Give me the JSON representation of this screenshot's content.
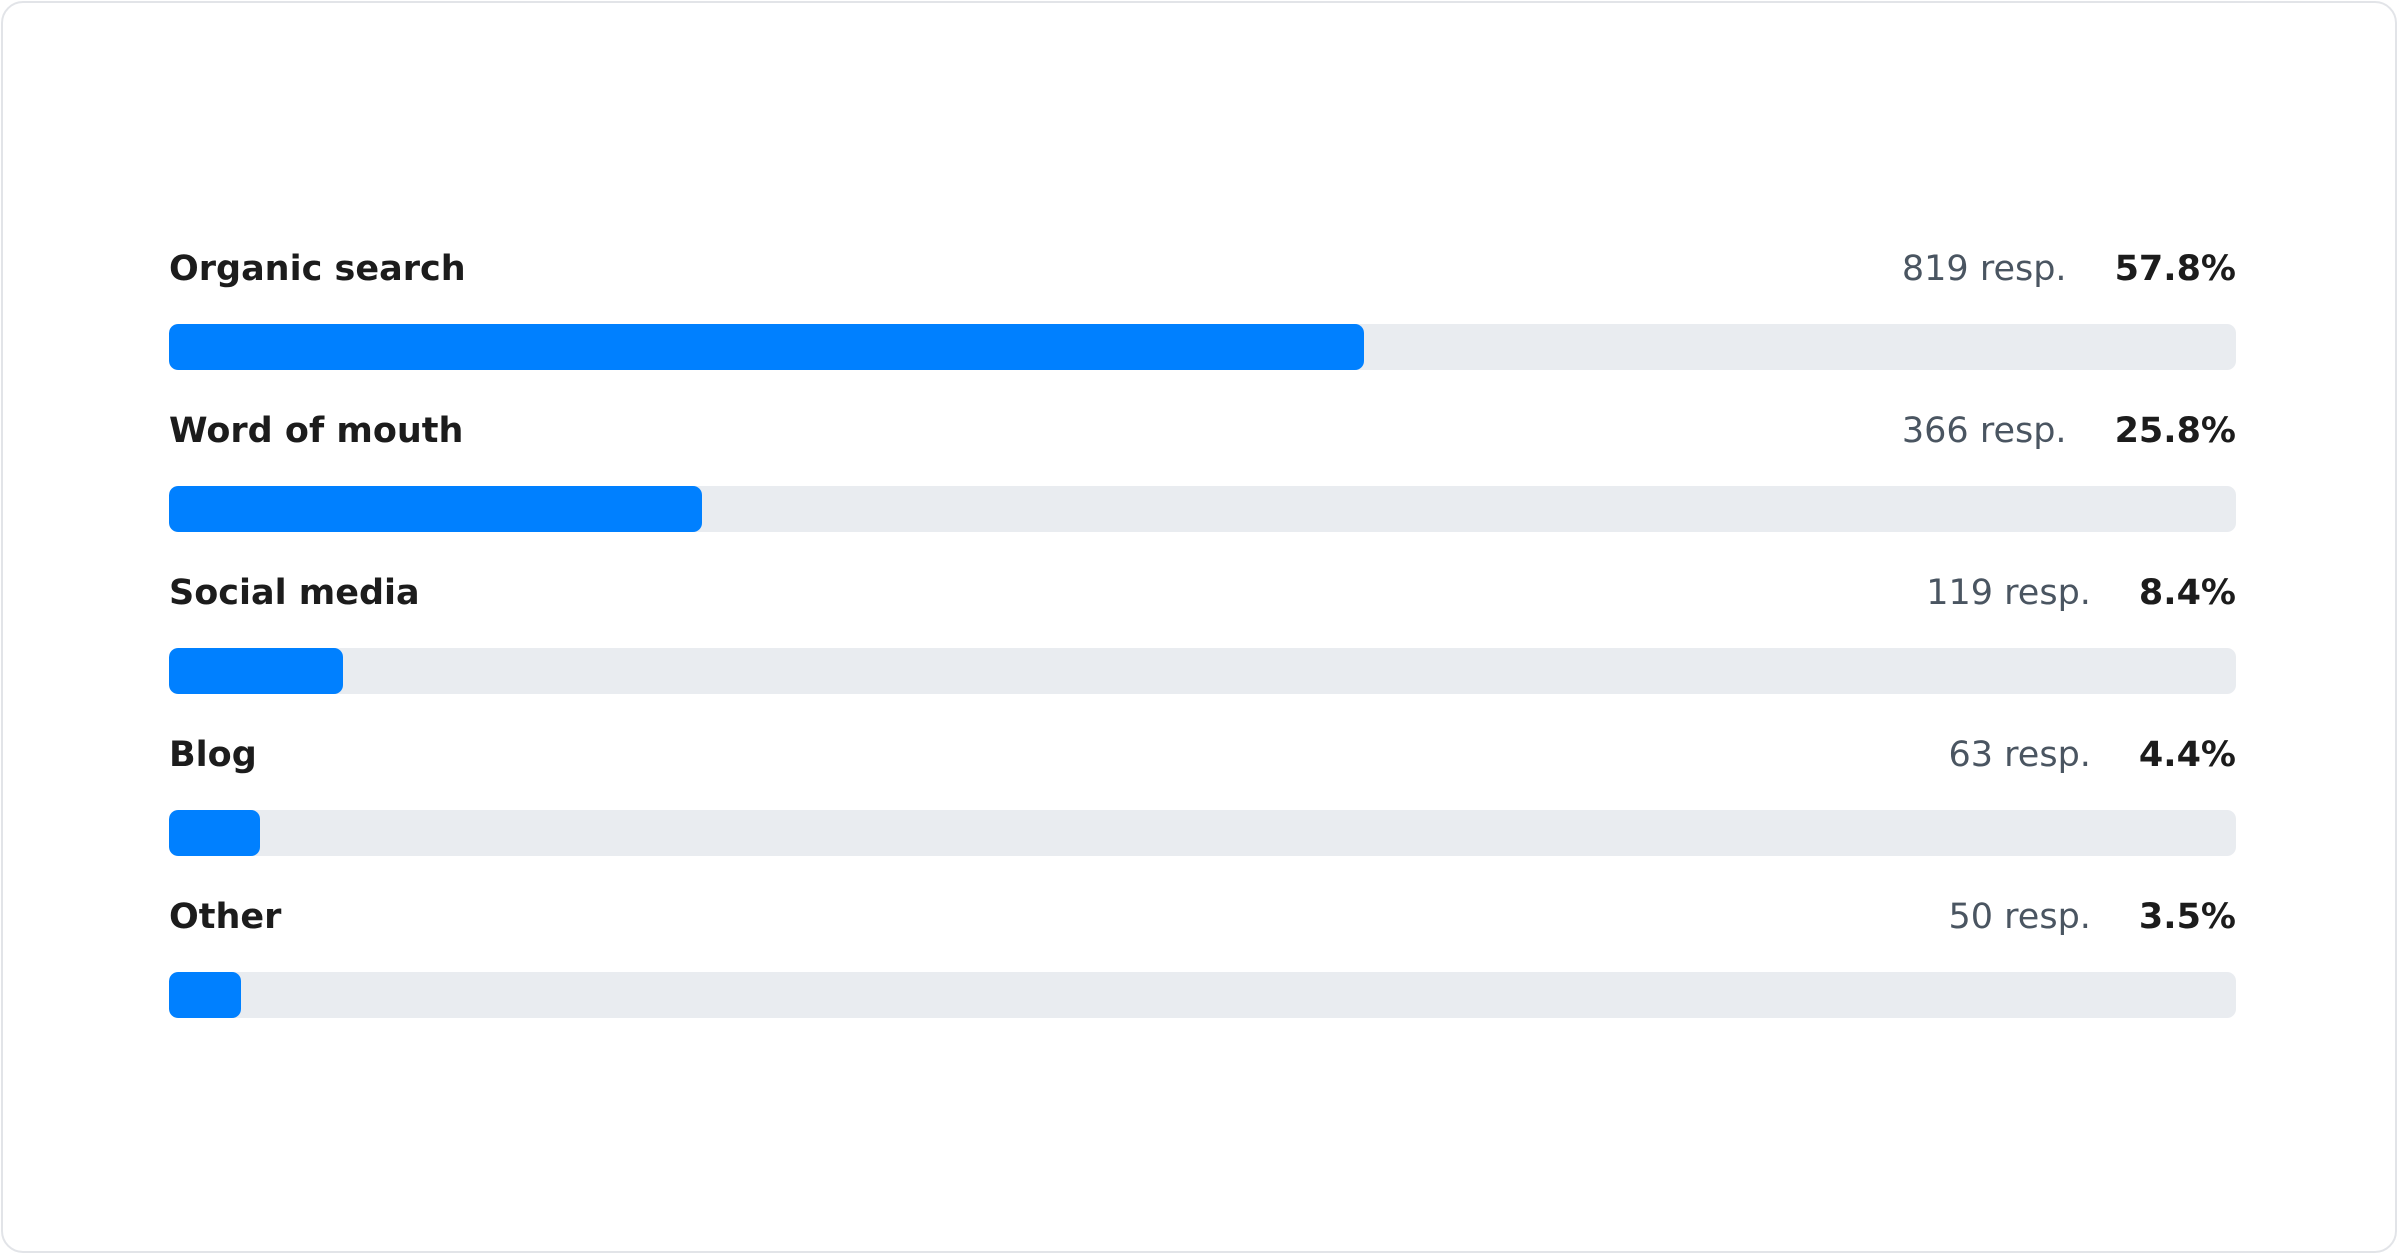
{
  "chart_data": {
    "type": "bar",
    "orientation": "horizontal",
    "categories": [
      "Organic search",
      "Word of mouth",
      "Social media",
      "Blog",
      "Other"
    ],
    "responses": [
      819,
      366,
      119,
      63,
      50
    ],
    "values": [
      57.8,
      25.8,
      8.4,
      4.4,
      3.5
    ],
    "response_labels": [
      "819 resp.",
      "366 resp.",
      "119 resp.",
      "63 resp.",
      "50 resp."
    ],
    "value_labels": [
      "57.8%",
      "25.8%",
      "8.4%",
      "4.4%",
      "3.5%"
    ],
    "xlim": [
      0,
      100
    ],
    "colors": {
      "bar": "#0080ff",
      "track": "#e9ecf0"
    }
  }
}
